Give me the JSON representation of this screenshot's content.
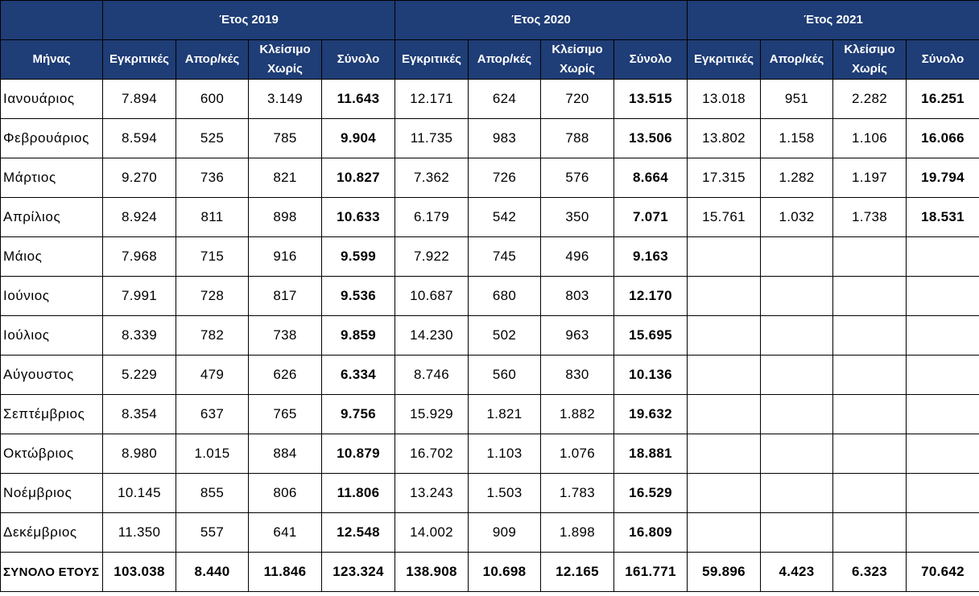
{
  "table": {
    "corner": "",
    "month_header": "Μήνας",
    "years": [
      {
        "label": "Έτος 2019"
      },
      {
        "label": "Έτος 2020"
      },
      {
        "label": "Έτος 2021"
      }
    ],
    "column_labels": [
      "Εγκριτικές",
      "Απορ/κές",
      "Κλείσιμο Χωρίς",
      "Σύνολο"
    ],
    "rows": [
      {
        "month": "Ιανουάριος",
        "values": [
          "7.894",
          "600",
          "3.149",
          "11.643",
          "12.171",
          "624",
          "720",
          "13.515",
          "13.018",
          "951",
          "2.282",
          "16.251"
        ]
      },
      {
        "month": "Φεβρουάριος",
        "values": [
          "8.594",
          "525",
          "785",
          "9.904",
          "11.735",
          "983",
          "788",
          "13.506",
          "13.802",
          "1.158",
          "1.106",
          "16.066"
        ]
      },
      {
        "month": "Μάρτιος",
        "values": [
          "9.270",
          "736",
          "821",
          "10.827",
          "7.362",
          "726",
          "576",
          "8.664",
          "17.315",
          "1.282",
          "1.197",
          "19.794"
        ]
      },
      {
        "month": "Απρίλιος",
        "values": [
          "8.924",
          "811",
          "898",
          "10.633",
          "6.179",
          "542",
          "350",
          "7.071",
          "15.761",
          "1.032",
          "1.738",
          "18.531"
        ]
      },
      {
        "month": "Μάιος",
        "values": [
          "7.968",
          "715",
          "916",
          "9.599",
          "7.922",
          "745",
          "496",
          "9.163",
          "",
          "",
          "",
          ""
        ]
      },
      {
        "month": "Ιούνιος",
        "values": [
          "7.991",
          "728",
          "817",
          "9.536",
          "10.687",
          "680",
          "803",
          "12.170",
          "",
          "",
          "",
          ""
        ]
      },
      {
        "month": "Ιούλιος",
        "values": [
          "8.339",
          "782",
          "738",
          "9.859",
          "14.230",
          "502",
          "963",
          "15.695",
          "",
          "",
          "",
          ""
        ]
      },
      {
        "month": "Αύγουστος",
        "values": [
          "5.229",
          "479",
          "626",
          "6.334",
          "8.746",
          "560",
          "830",
          "10.136",
          "",
          "",
          "",
          ""
        ]
      },
      {
        "month": "Σεπτέμβριος",
        "values": [
          "8.354",
          "637",
          "765",
          "9.756",
          "15.929",
          "1.821",
          "1.882",
          "19.632",
          "",
          "",
          "",
          ""
        ]
      },
      {
        "month": "Οκτώβριος",
        "values": [
          "8.980",
          "1.015",
          "884",
          "10.879",
          "16.702",
          "1.103",
          "1.076",
          "18.881",
          "",
          "",
          "",
          ""
        ]
      },
      {
        "month": "Νοέμβριος",
        "values": [
          "10.145",
          "855",
          "806",
          "11.806",
          "13.243",
          "1.503",
          "1.783",
          "16.529",
          "",
          "",
          "",
          ""
        ]
      },
      {
        "month": "Δεκέμβριος",
        "values": [
          "11.350",
          "557",
          "641",
          "12.548",
          "14.002",
          "909",
          "1.898",
          "16.809",
          "",
          "",
          "",
          ""
        ]
      }
    ],
    "total": {
      "label": "ΣΥΝΟΛΟ ΕΤΟΥΣ",
      "values": [
        "103.038",
        "8.440",
        "11.846",
        "123.324",
        "138.908",
        "10.698",
        "12.165",
        "161.771",
        "59.896",
        "4.423",
        "6.323",
        "70.642"
      ]
    }
  }
}
